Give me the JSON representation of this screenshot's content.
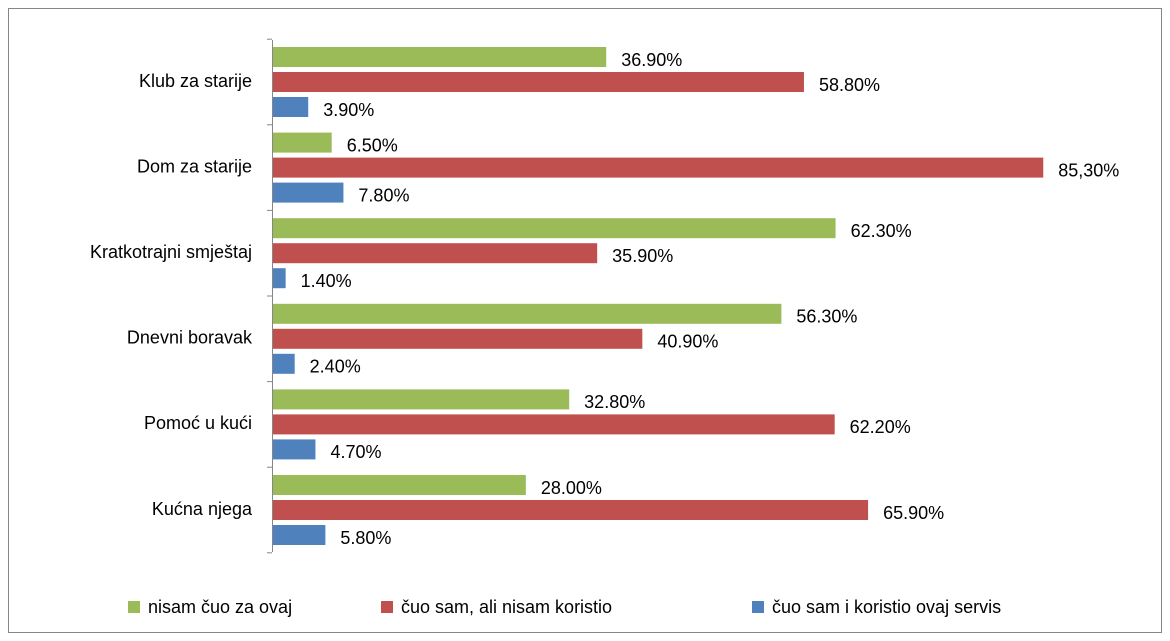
{
  "chart_data": {
    "type": "bar",
    "orientation": "horizontal",
    "categories": [
      "Klub za starije",
      "Dom za starije",
      "Kratkotrajni smještaj",
      "Dnevni boravak",
      "Pomoć u kući",
      "Kućna njega"
    ],
    "series": [
      {
        "name": "nisam čuo za ovaj",
        "color": "#9bbb59",
        "values": [
          36.9,
          6.5,
          62.3,
          56.3,
          32.8,
          28.0
        ],
        "value_labels": [
          "36.90%",
          "6.50%",
          "62.30%",
          "56.30%",
          "32.80%",
          "28.00%"
        ]
      },
      {
        "name": "čuo sam, ali nisam koristio",
        "color": "#c0504d",
        "values": [
          58.8,
          85.3,
          35.9,
          40.9,
          62.2,
          65.9
        ],
        "value_labels": [
          "58.80%",
          "85,30%",
          "35.90%",
          "40.90%",
          "62.20%",
          "65.90%"
        ]
      },
      {
        "name": "čuo sam i koristio ovaj servis",
        "color": "#4f81bd",
        "values": [
          3.9,
          7.8,
          1.4,
          2.4,
          4.7,
          5.8
        ],
        "value_labels": [
          "3.90%",
          "7.80%",
          "1.40%",
          "2.40%",
          "4.70%",
          "5.80%"
        ]
      }
    ],
    "legend": "bottom"
  }
}
